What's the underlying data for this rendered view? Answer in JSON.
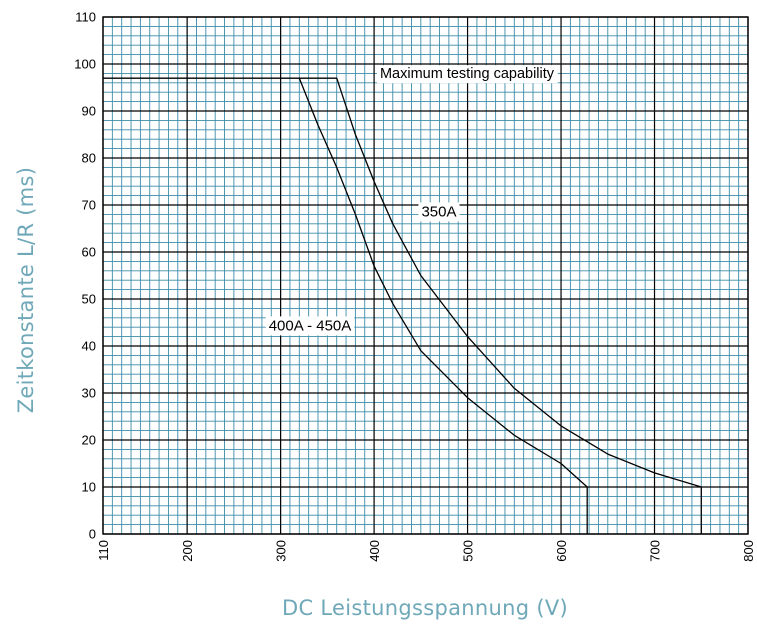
{
  "chart_data": {
    "type": "line",
    "title": "",
    "xlabel": "DC Leistungsspannung (V)",
    "ylabel": "Zeitkonstante L/R (ms)",
    "xlim": [
      110,
      800
    ],
    "ylim": [
      0,
      110
    ],
    "x_ticks": [
      110,
      200,
      300,
      400,
      500,
      600,
      700,
      800
    ],
    "y_ticks": [
      0,
      10,
      20,
      30,
      40,
      50,
      60,
      70,
      80,
      90,
      100,
      110
    ],
    "grid": true,
    "minor_grid_step_x": 10,
    "minor_grid_step_y": 2,
    "colors": {
      "grid_minor": "#3c8ca8",
      "grid_major": "#000000",
      "curve": "#000000",
      "axis_title": "#6fa8b8"
    },
    "reference_line": {
      "label": "Maximum testing capability",
      "y": 97
    },
    "series": [
      {
        "name": "350A",
        "x": [
          110,
          360,
          380,
          400,
          420,
          450,
          500,
          550,
          600,
          650,
          700,
          750,
          750
        ],
        "y": [
          97,
          97,
          85,
          75,
          66,
          55,
          42,
          31,
          23,
          17,
          13,
          10,
          0
        ]
      },
      {
        "name": "400A - 450A",
        "x": [
          320,
          340,
          360,
          380,
          400,
          420,
          450,
          500,
          550,
          600,
          628,
          628
        ],
        "y": [
          97,
          87,
          78,
          68,
          57,
          49,
          39,
          29,
          21,
          15,
          10,
          0
        ]
      }
    ]
  }
}
